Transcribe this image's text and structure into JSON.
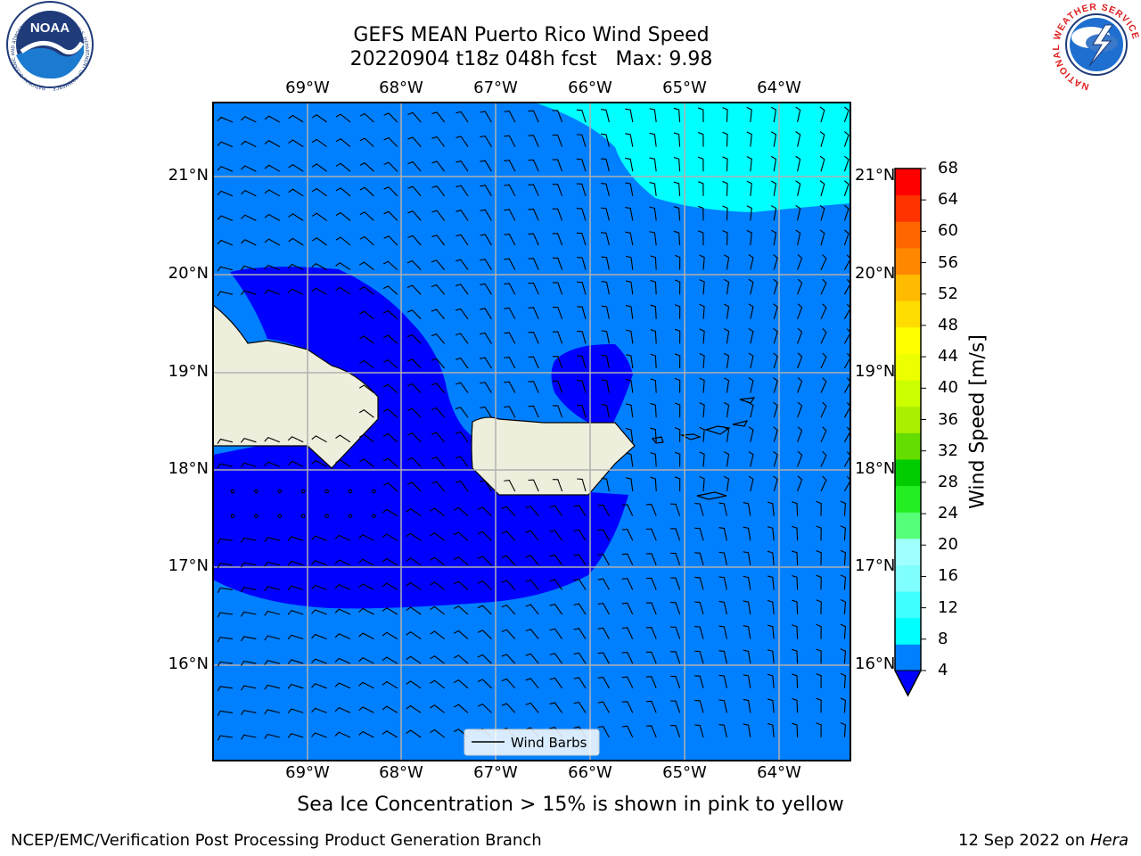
{
  "title_line1": "GEFS MEAN Puerto Rico Wind Speed",
  "title_line2": "20220904 t18z 048h fcst   Max: 9.98",
  "map": {
    "lon_labels": [
      "69°W",
      "68°W",
      "67°W",
      "66°W",
      "65°W",
      "64°W"
    ],
    "lat_labels": [
      "21°N",
      "20°N",
      "19°N",
      "18°N",
      "17°N",
      "16°N"
    ],
    "legend_label": "Wind Barbs",
    "colors": {
      "background_4_8": "#0080ff",
      "below_4": "#0000ff",
      "range_8_12": "#00ffff",
      "land": "#eeeedd"
    }
  },
  "colorbar": {
    "title": "Wind Speed [m/s]",
    "ticks": [
      "68",
      "64",
      "60",
      "56",
      "52",
      "48",
      "44",
      "40",
      "36",
      "32",
      "28",
      "24",
      "20",
      "16",
      "12",
      "8",
      "4"
    ],
    "colors_low_to_high": [
      "#0080ff",
      "#00ffff",
      "#40ffff",
      "#80ffff",
      "#a0ffff",
      "#55ff77",
      "#22ee22",
      "#00cc00",
      "#66dd00",
      "#aaee00",
      "#ccff00",
      "#eeff00",
      "#ffff00",
      "#ffdd00",
      "#ffbb00",
      "#ff8800",
      "#ff6600",
      "#ff3300",
      "#ff0000"
    ],
    "extend_color": "#0000ff"
  },
  "caption": "Sea Ice Concentration > 15% is shown in pink to yellow",
  "footer_left": "NCEP/EMC/Verification Post Processing Product Generation Branch",
  "footer_date": "12 Sep 2022 on ",
  "footer_machine": "Hera",
  "logos": {
    "noaa_text": "NOAA",
    "noaa_ring": "NATIONAL OCEANIC AND ATMOSPHERIC ADMINISTRATION · U.S. DEPARTMENT OF COMMERCE",
    "nws_ring": "NATIONAL WEATHER SERVICE"
  }
}
